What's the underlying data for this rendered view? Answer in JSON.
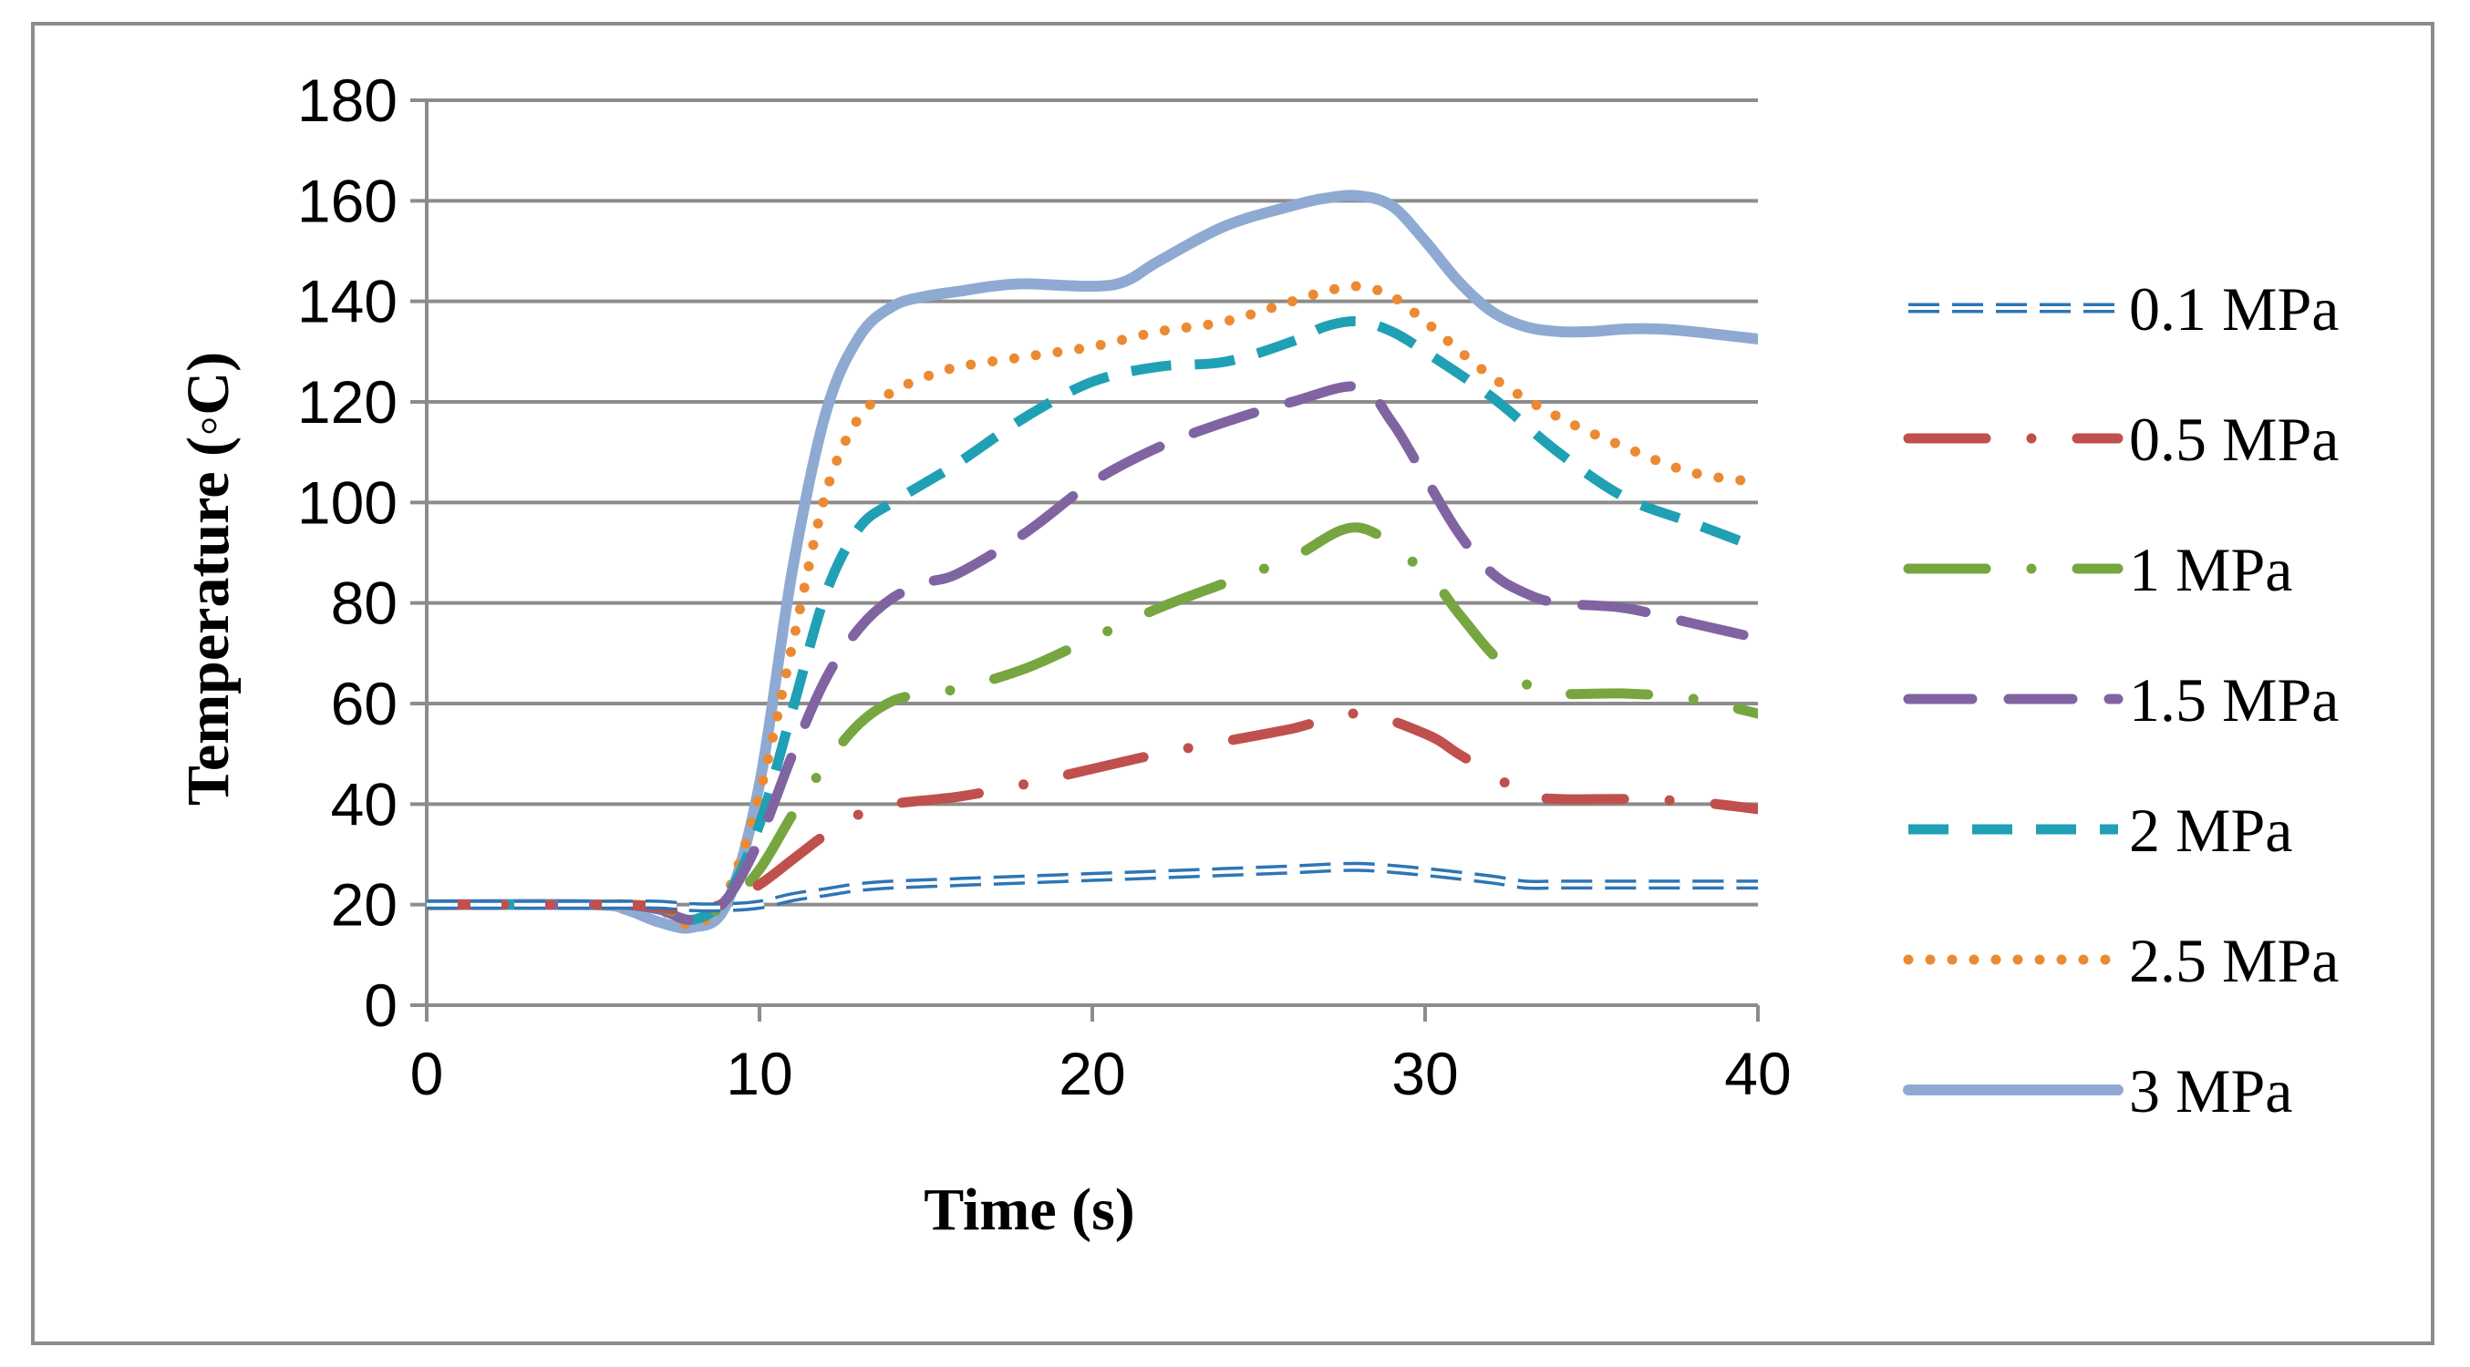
{
  "chart_data": {
    "type": "line",
    "title": "",
    "xlabel": "Time (s)",
    "ylabel": "Temperature (◦C)",
    "xlim": [
      0,
      40
    ],
    "ylim": [
      0,
      180
    ],
    "xticks": [
      0,
      10,
      20,
      30,
      40
    ],
    "yticks": [
      0,
      20,
      40,
      60,
      80,
      100,
      120,
      140,
      160,
      180
    ],
    "grid": "horizontal",
    "legend_position": "right",
    "series": [
      {
        "name": "0.1 MPa",
        "color": "#2e75b6",
        "style": "outline-dash",
        "x": [
          0,
          5,
          6,
          7,
          8,
          9,
          10,
          11,
          12,
          13,
          14,
          16,
          18,
          20,
          22,
          24,
          26,
          28,
          30,
          32,
          33,
          34,
          36,
          38,
          40
        ],
        "y": [
          20,
          20,
          20,
          20,
          19.5,
          19.5,
          20,
          21.5,
          22.5,
          23.5,
          24,
          24.5,
          25,
          25.5,
          26,
          26.5,
          27,
          27.5,
          26.5,
          25,
          24,
          24,
          24,
          24,
          24
        ]
      },
      {
        "name": "0.5 MPa",
        "color": "#c0504d",
        "style": "dash-dot",
        "x": [
          0,
          5,
          6,
          7,
          8,
          9,
          10,
          11,
          12,
          13,
          14,
          16,
          18,
          20,
          22,
          24,
          26,
          28,
          30,
          31,
          32,
          33,
          34,
          36,
          38,
          40
        ],
        "y": [
          20,
          20,
          20,
          19.5,
          18.5,
          20.5,
          24,
          29,
          34,
          38,
          40,
          41.5,
          44,
          47,
          50,
          52.5,
          55,
          58,
          54,
          50,
          46,
          42,
          41,
          41,
          40.5,
          39
        ]
      },
      {
        "name": "1 MPa",
        "color": "#77a641",
        "style": "dash-dot",
        "x": [
          0,
          5,
          6,
          7,
          8,
          9,
          10,
          11,
          12,
          13,
          14,
          15,
          16,
          18,
          20,
          22,
          24,
          26,
          28,
          30,
          31,
          32,
          33,
          34,
          36,
          38,
          40
        ],
        "y": [
          20,
          20,
          20,
          19.5,
          17.5,
          20,
          27,
          38,
          48,
          56,
          60.5,
          62,
          63,
          67,
          73,
          79,
          84,
          89,
          95,
          86,
          78,
          70,
          64,
          62,
          62,
          61,
          58
        ]
      },
      {
        "name": "1.5 MPa",
        "color": "#8064a2",
        "style": "long-dash",
        "x": [
          0,
          5,
          6,
          7,
          8,
          9,
          10,
          11,
          12,
          13,
          14,
          15,
          16,
          18,
          20,
          22,
          24,
          26,
          28,
          29,
          30,
          31,
          32,
          33,
          34,
          36,
          38,
          40
        ],
        "y": [
          20,
          20,
          20,
          19,
          17,
          21,
          33,
          50,
          65,
          75,
          81,
          84,
          86,
          94,
          104,
          111,
          116,
          120,
          123,
          116,
          105,
          94,
          86,
          82,
          80,
          79,
          76,
          73
        ]
      },
      {
        "name": "2 MPa",
        "color": "#1fa0b5",
        "style": "dash",
        "x": [
          0,
          5,
          6,
          7,
          8,
          9,
          10,
          11,
          12,
          13,
          14,
          15,
          16,
          18,
          20,
          22,
          24,
          26,
          27,
          28,
          29,
          30,
          32,
          34,
          36,
          38,
          40
        ],
        "y": [
          20,
          20,
          20,
          19,
          17,
          21.5,
          36,
          59,
          82,
          95,
          100,
          104,
          108,
          117,
          124,
          127,
          128,
          132,
          135,
          136,
          134,
          130,
          121,
          110,
          101,
          96,
          91
        ]
      },
      {
        "name": "2.5 MPa",
        "color": "#ec8a33",
        "style": "dot",
        "x": [
          0,
          5,
          6,
          7,
          8,
          9,
          10,
          11,
          12,
          13,
          14,
          15,
          16,
          18,
          20,
          22,
          24,
          26,
          27,
          28,
          29,
          30,
          32,
          34,
          36,
          38,
          40
        ],
        "y": [
          20,
          20,
          20,
          19,
          16,
          22,
          42,
          72,
          102,
          117,
          122,
          125,
          127,
          129,
          131,
          134,
          136,
          140,
          142,
          143,
          141,
          136,
          125,
          117,
          111,
          106,
          104
        ]
      },
      {
        "name": "3 MPa",
        "color": "#8eaad2",
        "style": "solid",
        "x": [
          0,
          5,
          6,
          7,
          8,
          9,
          10,
          11,
          12,
          13,
          14,
          15,
          16,
          17,
          18,
          20,
          21,
          22,
          24,
          26,
          27,
          28,
          29,
          30,
          31,
          32,
          33,
          34,
          35,
          36,
          37,
          38,
          40
        ],
        "y": [
          20,
          20,
          19,
          16.5,
          15.5,
          20,
          44,
          87,
          118,
          133,
          139,
          141,
          142,
          143,
          143.5,
          143,
          144,
          148,
          155,
          159,
          160.5,
          161,
          159,
          152,
          144,
          138,
          135,
          134,
          134,
          134.5,
          134.5,
          134,
          132.5
        ]
      }
    ]
  }
}
